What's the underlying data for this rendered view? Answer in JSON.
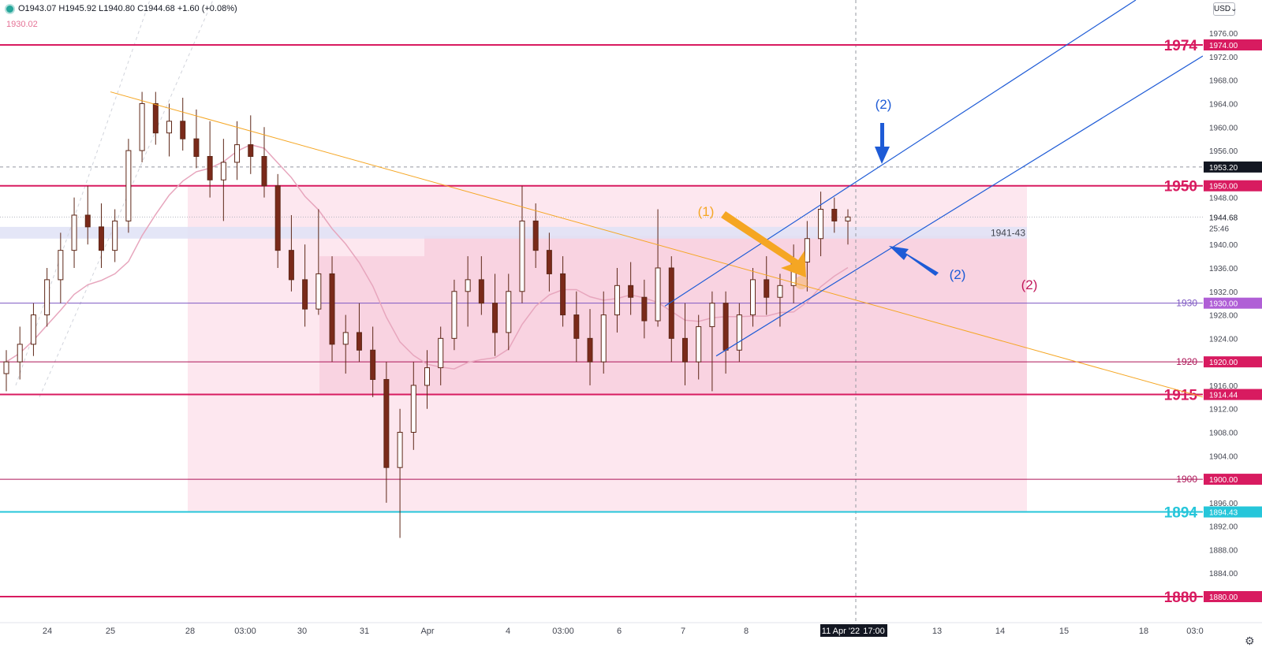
{
  "header": {
    "ohlc_text": "O1943.07 H1945.92 L1940.80 C1944.68 +1.60 (+0.08%)",
    "sub_value": "1930.02",
    "currency": "USD"
  },
  "colors": {
    "resistance": "#d81b60",
    "support_cyan": "#26c6da",
    "minor_level": "#ad1457",
    "channel": "#1e5bd6",
    "downtrend": "#f5a623",
    "candle_up": "#ffffff",
    "candle_down": "#7a2a1a",
    "zone": "#f8bbd0",
    "band": "#c5cae9"
  },
  "chart_data": {
    "type": "candlestick",
    "symbol_quote": "USD",
    "ylim": [
      1879,
      1980
    ],
    "y_ticks": [
      "1976.00",
      "1972.00",
      "1968.00",
      "1964.00",
      "1960.00",
      "1956.00",
      "1948.00",
      "1940.00",
      "1936.00",
      "1932.00",
      "1928.00",
      "1924.00",
      "1916.00",
      "1912.00",
      "1908.00",
      "1904.00",
      "1896.00",
      "1892.00",
      "1888.00",
      "1884.00"
    ],
    "x_ticks": [
      "24",
      "25",
      "28",
      "03:00",
      "30",
      "31",
      "Apr",
      "4",
      "03:00",
      "6",
      "7",
      "8",
      "11 Apr '22",
      "17:00",
      "13",
      "14",
      "15",
      "18",
      "03:0"
    ],
    "crosshair_label": "11 Apr '22",
    "crosshair_time": "17:00",
    "horizontal_levels": [
      {
        "value": 1974.0,
        "label": "1974",
        "price_tag": "1974.00",
        "style": "major",
        "color": "#d81b60"
      },
      {
        "value": 1950.0,
        "label": "1950",
        "price_tag": "1950.00",
        "style": "major",
        "color": "#d81b60"
      },
      {
        "value": 1930.0,
        "label": "1930",
        "price_tag": "1930.00",
        "style": "minor",
        "color": "#7e57c2"
      },
      {
        "value": 1920.0,
        "label": "1920",
        "price_tag": "1920.00",
        "style": "minor",
        "color": "#ad1457"
      },
      {
        "value": 1914.44,
        "label": "1915",
        "price_tag": "1914.44",
        "style": "major",
        "color": "#d81b60"
      },
      {
        "value": 1900.0,
        "label": "1900",
        "price_tag": "1900.00",
        "style": "minor",
        "color": "#ad1457"
      },
      {
        "value": 1894.43,
        "label": "1894",
        "price_tag": "1894.43",
        "style": "major",
        "color": "#26c6da"
      },
      {
        "value": 1880.0,
        "label": "1880",
        "price_tag": "1880.00",
        "style": "major",
        "color": "#d81b60"
      }
    ],
    "current_price": {
      "value": 1944.68,
      "price_tag": "1944.68",
      "countdown": "25:46"
    },
    "crosshair_price": {
      "value": 1953.2,
      "price_tag": "1953.20"
    },
    "zone_label": "1941-43",
    "annotations": [
      "(1)",
      "(2)",
      "(2)",
      "(2)"
    ],
    "candles": [
      [
        1918,
        1922,
        1915,
        1920
      ],
      [
        1920,
        1926,
        1917,
        1923
      ],
      [
        1923,
        1930,
        1921,
        1928
      ],
      [
        1928,
        1936,
        1926,
        1934
      ],
      [
        1934,
        1942,
        1930,
        1939
      ],
      [
        1939,
        1948,
        1936,
        1945
      ],
      [
        1945,
        1950,
        1940,
        1943
      ],
      [
        1943,
        1947,
        1936,
        1939
      ],
      [
        1939,
        1946,
        1937,
        1944
      ],
      [
        1944,
        1958,
        1942,
        1956
      ],
      [
        1956,
        1966,
        1954,
        1964
      ],
      [
        1964,
        1966,
        1957,
        1959
      ],
      [
        1959,
        1964,
        1955,
        1961
      ],
      [
        1961,
        1965,
        1956,
        1958
      ],
      [
        1958,
        1963,
        1953,
        1955
      ],
      [
        1955,
        1961,
        1948,
        1951
      ],
      [
        1951,
        1958,
        1944,
        1954
      ],
      [
        1954,
        1961,
        1951,
        1957
      ],
      [
        1957,
        1962,
        1952,
        1955
      ],
      [
        1955,
        1960,
        1948,
        1950
      ],
      [
        1950,
        1952,
        1936,
        1939
      ],
      [
        1939,
        1945,
        1932,
        1934
      ],
      [
        1934,
        1940,
        1926,
        1929
      ],
      [
        1929,
        1946,
        1928,
        1935
      ],
      [
        1935,
        1938,
        1920,
        1923
      ],
      [
        1923,
        1928,
        1918,
        1925
      ],
      [
        1925,
        1930,
        1920,
        1922
      ],
      [
        1922,
        1926,
        1914,
        1917
      ],
      [
        1917,
        1920,
        1896,
        1902
      ],
      [
        1902,
        1912,
        1890,
        1908
      ],
      [
        1908,
        1920,
        1905,
        1916
      ],
      [
        1916,
        1922,
        1912,
        1919
      ],
      [
        1919,
        1926,
        1916,
        1924
      ],
      [
        1924,
        1934,
        1922,
        1932
      ],
      [
        1932,
        1938,
        1926,
        1934
      ],
      [
        1934,
        1938,
        1928,
        1930
      ],
      [
        1930,
        1935,
        1921,
        1925
      ],
      [
        1925,
        1935,
        1922,
        1932
      ],
      [
        1932,
        1950,
        1930,
        1944
      ],
      [
        1944,
        1947,
        1936,
        1939
      ],
      [
        1939,
        1942,
        1932,
        1935
      ],
      [
        1935,
        1938,
        1926,
        1928
      ],
      [
        1928,
        1932,
        1920,
        1924
      ],
      [
        1924,
        1929,
        1916,
        1920
      ],
      [
        1920,
        1932,
        1918,
        1928
      ],
      [
        1928,
        1936,
        1925,
        1933
      ],
      [
        1933,
        1937,
        1928,
        1931
      ],
      [
        1931,
        1934,
        1924,
        1927
      ],
      [
        1927,
        1946,
        1926,
        1936
      ],
      [
        1936,
        1938,
        1920,
        1924
      ],
      [
        1924,
        1930,
        1916,
        1920
      ],
      [
        1920,
        1928,
        1917,
        1926
      ],
      [
        1926,
        1932,
        1915,
        1930
      ],
      [
        1930,
        1932,
        1918,
        1922
      ],
      [
        1922,
        1930,
        1920,
        1928
      ],
      [
        1928,
        1936,
        1926,
        1934
      ],
      [
        1934,
        1938,
        1928,
        1931
      ],
      [
        1931,
        1935,
        1926,
        1933
      ],
      [
        1933,
        1940,
        1930,
        1937
      ],
      [
        1937,
        1944,
        1932,
        1941
      ],
      [
        1941,
        1949,
        1938,
        1946
      ],
      [
        1946,
        1948,
        1942,
        1944
      ],
      [
        1944,
        1946,
        1940,
        1944.68
      ]
    ]
  }
}
